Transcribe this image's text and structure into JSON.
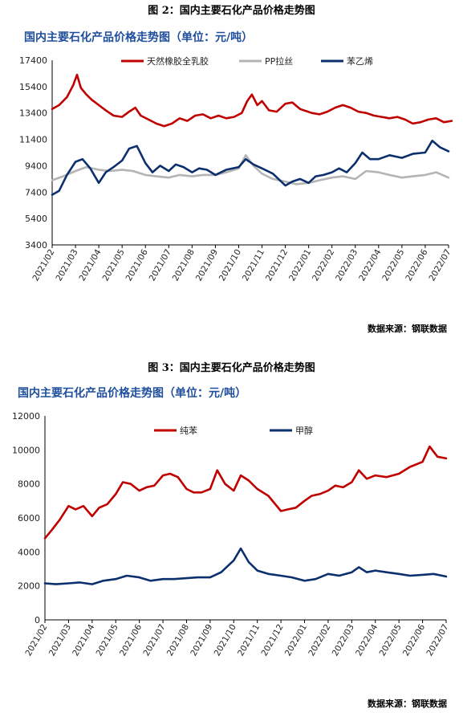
{
  "figure1": {
    "caption": "图 2：国内主要石化产品价格走势图",
    "title": "国内主要石化产品价格走势图（单位：元/吨）",
    "source": "数据来源：钢联数据"
  },
  "figure2": {
    "caption": "图 3：国内主要石化产品价格走势图",
    "title": "国内主要石化产品价格走势图（单位：元/吨）",
    "source": "数据来源：钢联数据"
  },
  "chart_data": [
    {
      "type": "line",
      "title": "国内主要石化产品价格走势图（单位：元/吨）",
      "xlabel": "",
      "ylabel": "",
      "x": [
        "2021/02",
        "2021/03",
        "2021/04",
        "2021/05",
        "2021/06",
        "2021/07",
        "2021/08",
        "2021/09",
        "2021/10",
        "2021/11",
        "2021/12",
        "2022/01",
        "2022/02",
        "2022/03",
        "2022/04",
        "2022/05",
        "2022/06",
        "2022/07"
      ],
      "ylim": [
        3400,
        17400
      ],
      "yticks": [
        3400,
        5400,
        7400,
        9400,
        11400,
        13400,
        15400,
        17400
      ],
      "grid": false,
      "legend": "top",
      "series": [
        {
          "name": "天然橡胶全乳胶",
          "color": "#c00000",
          "points": [
            [
              "2021/02/01",
              13700
            ],
            [
              "2021/02/10",
              14000
            ],
            [
              "2021/02/20",
              14600
            ],
            [
              "2021/02/28",
              15500
            ],
            [
              "2021/03/03",
              16300
            ],
            [
              "2021/03/08",
              15300
            ],
            [
              "2021/03/15",
              14800
            ],
            [
              "2021/03/22",
              14400
            ],
            [
              "2021/04/01",
              14000
            ],
            [
              "2021/04/10",
              13600
            ],
            [
              "2021/04/20",
              13200
            ],
            [
              "2021/05/01",
              13100
            ],
            [
              "2021/05/10",
              13500
            ],
            [
              "2021/05/18",
              13800
            ],
            [
              "2021/05/25",
              13200
            ],
            [
              "2021/06/05",
              12900
            ],
            [
              "2021/06/15",
              12600
            ],
            [
              "2021/06/25",
              12400
            ],
            [
              "2021/07/05",
              12600
            ],
            [
              "2021/07/15",
              13000
            ],
            [
              "2021/07/25",
              12800
            ],
            [
              "2021/08/05",
              13200
            ],
            [
              "2021/08/15",
              13300
            ],
            [
              "2021/08/25",
              13000
            ],
            [
              "2021/09/05",
              13200
            ],
            [
              "2021/09/15",
              13000
            ],
            [
              "2021/09/25",
              13100
            ],
            [
              "2021/10/05",
              13400
            ],
            [
              "2021/10/12",
              14300
            ],
            [
              "2021/10/18",
              14800
            ],
            [
              "2021/10/25",
              14000
            ],
            [
              "2021/11/01",
              14300
            ],
            [
              "2021/11/10",
              13600
            ],
            [
              "2021/11/20",
              13500
            ],
            [
              "2021/12/01",
              14100
            ],
            [
              "2021/12/10",
              14200
            ],
            [
              "2021/12/20",
              13700
            ],
            [
              "2022/01/05",
              13400
            ],
            [
              "2022/01/15",
              13300
            ],
            [
              "2022/01/25",
              13500
            ],
            [
              "2022/02/05",
              13800
            ],
            [
              "2022/02/15",
              14000
            ],
            [
              "2022/02/25",
              13800
            ],
            [
              "2022/03/05",
              13500
            ],
            [
              "2022/03/15",
              13400
            ],
            [
              "2022/03/25",
              13200
            ],
            [
              "2022/04/05",
              13100
            ],
            [
              "2022/04/15",
              13000
            ],
            [
              "2022/04/25",
              13100
            ],
            [
              "2022/05/05",
              12900
            ],
            [
              "2022/05/15",
              12600
            ],
            [
              "2022/05/25",
              12700
            ],
            [
              "2022/06/05",
              12900
            ],
            [
              "2022/06/15",
              13000
            ],
            [
              "2022/06/25",
              12700
            ],
            [
              "2022/07/05",
              12800
            ]
          ]
        },
        {
          "name": "PP拉丝",
          "color": "#b4b4b4",
          "points": [
            [
              "2021/02/01",
              8300
            ],
            [
              "2021/02/15",
              8600
            ],
            [
              "2021/03/01",
              9000
            ],
            [
              "2021/03/15",
              9300
            ],
            [
              "2021/04/01",
              9100
            ],
            [
              "2021/04/15",
              9000
            ],
            [
              "2021/05/01",
              9100
            ],
            [
              "2021/05/15",
              9000
            ],
            [
              "2021/06/01",
              8700
            ],
            [
              "2021/06/15",
              8600
            ],
            [
              "2021/07/01",
              8500
            ],
            [
              "2021/07/15",
              8700
            ],
            [
              "2021/08/01",
              8600
            ],
            [
              "2021/08/15",
              8700
            ],
            [
              "2021/09/01",
              8700
            ],
            [
              "2021/09/15",
              8900
            ],
            [
              "2021/10/01",
              9200
            ],
            [
              "2021/10/10",
              10200
            ],
            [
              "2021/10/20",
              9400
            ],
            [
              "2021/11/01",
              8800
            ],
            [
              "2021/11/15",
              8400
            ],
            [
              "2021/12/01",
              8200
            ],
            [
              "2021/12/15",
              8000
            ],
            [
              "2022/01/01",
              8100
            ],
            [
              "2022/01/15",
              8300
            ],
            [
              "2022/02/01",
              8500
            ],
            [
              "2022/02/15",
              8600
            ],
            [
              "2022/03/01",
              8400
            ],
            [
              "2022/03/15",
              9000
            ],
            [
              "2022/04/01",
              8900
            ],
            [
              "2022/04/15",
              8700
            ],
            [
              "2022/05/01",
              8500
            ],
            [
              "2022/05/15",
              8600
            ],
            [
              "2022/06/01",
              8700
            ],
            [
              "2022/06/15",
              8900
            ],
            [
              "2022/07/01",
              8500
            ]
          ]
        },
        {
          "name": "苯乙烯",
          "color": "#0c2f6e",
          "points": [
            [
              "2021/02/01",
              7200
            ],
            [
              "2021/02/10",
              7500
            ],
            [
              "2021/02/20",
              8700
            ],
            [
              "2021/03/01",
              9700
            ],
            [
              "2021/03/10",
              9900
            ],
            [
              "2021/03/20",
              9200
            ],
            [
              "2021/04/01",
              8100
            ],
            [
              "2021/04/10",
              8900
            ],
            [
              "2021/04/20",
              9300
            ],
            [
              "2021/05/01",
              9800
            ],
            [
              "2021/05/10",
              10700
            ],
            [
              "2021/05/20",
              10900
            ],
            [
              "2021/06/01",
              9600
            ],
            [
              "2021/06/10",
              8900
            ],
            [
              "2021/06/20",
              9400
            ],
            [
              "2021/07/01",
              9000
            ],
            [
              "2021/07/10",
              9500
            ],
            [
              "2021/07/20",
              9300
            ],
            [
              "2021/08/01",
              8900
            ],
            [
              "2021/08/10",
              9200
            ],
            [
              "2021/08/20",
              9100
            ],
            [
              "2021/09/01",
              8700
            ],
            [
              "2021/09/15",
              9100
            ],
            [
              "2021/10/01",
              9300
            ],
            [
              "2021/10/10",
              9900
            ],
            [
              "2021/10/20",
              9500
            ],
            [
              "2021/11/01",
              9200
            ],
            [
              "2021/11/15",
              8800
            ],
            [
              "2021/12/01",
              7900
            ],
            [
              "2021/12/10",
              8200
            ],
            [
              "2021/12/20",
              8400
            ],
            [
              "2022/01/01",
              8100
            ],
            [
              "2022/01/10",
              8600
            ],
            [
              "2022/01/20",
              8700
            ],
            [
              "2022/02/01",
              8900
            ],
            [
              "2022/02/10",
              9200
            ],
            [
              "2022/02/20",
              8900
            ],
            [
              "2022/03/01",
              9600
            ],
            [
              "2022/03/10",
              10400
            ],
            [
              "2022/03/20",
              9900
            ],
            [
              "2022/04/01",
              9900
            ],
            [
              "2022/04/15",
              10200
            ],
            [
              "2022/05/01",
              10000
            ],
            [
              "2022/05/15",
              10300
            ],
            [
              "2022/06/01",
              10400
            ],
            [
              "2022/06/10",
              11300
            ],
            [
              "2022/06/20",
              10800
            ],
            [
              "2022/07/01",
              10500
            ]
          ]
        }
      ]
    },
    {
      "type": "line",
      "title": "国内主要石化产品价格走势图（单位：元/吨）",
      "xlabel": "",
      "ylabel": "",
      "x": [
        "2021/02",
        "2021/03",
        "2021/04",
        "2021/05",
        "2021/06",
        "2021/07",
        "2021/08",
        "2021/09",
        "2021/10",
        "2021/11",
        "2021/12",
        "2022/01",
        "2022/02",
        "2022/03",
        "2022/04",
        "2022/05",
        "2022/06",
        "2022/07"
      ],
      "ylim": [
        0,
        12000
      ],
      "yticks": [
        0,
        2000,
        4000,
        6000,
        8000,
        10000,
        12000
      ],
      "grid": false,
      "legend": "top",
      "series": [
        {
          "name": "纯苯",
          "color": "#c00000",
          "points": [
            [
              "2021/02/01",
              4800
            ],
            [
              "2021/02/10",
              5300
            ],
            [
              "2021/02/20",
              5900
            ],
            [
              "2021/03/01",
              6700
            ],
            [
              "2021/03/10",
              6500
            ],
            [
              "2021/03/20",
              6700
            ],
            [
              "2021/04/01",
              6100
            ],
            [
              "2021/04/10",
              6600
            ],
            [
              "2021/04/20",
              6800
            ],
            [
              "2021/05/01",
              7400
            ],
            [
              "2021/05/10",
              8100
            ],
            [
              "2021/05/20",
              8000
            ],
            [
              "2021/06/01",
              7600
            ],
            [
              "2021/06/10",
              7800
            ],
            [
              "2021/06/20",
              7900
            ],
            [
              "2021/07/01",
              8500
            ],
            [
              "2021/07/10",
              8600
            ],
            [
              "2021/07/20",
              8400
            ],
            [
              "2021/08/01",
              7700
            ],
            [
              "2021/08/10",
              7500
            ],
            [
              "2021/08/20",
              7500
            ],
            [
              "2021/09/01",
              7700
            ],
            [
              "2021/09/10",
              8800
            ],
            [
              "2021/09/20",
              8000
            ],
            [
              "2021/10/01",
              7600
            ],
            [
              "2021/10/10",
              8500
            ],
            [
              "2021/10/20",
              8200
            ],
            [
              "2021/11/01",
              7700
            ],
            [
              "2021/11/15",
              7300
            ],
            [
              "2021/12/01",
              6400
            ],
            [
              "2021/12/10",
              6500
            ],
            [
              "2021/12/20",
              6600
            ],
            [
              "2022/01/01",
              7000
            ],
            [
              "2022/01/10",
              7300
            ],
            [
              "2022/01/20",
              7400
            ],
            [
              "2022/02/01",
              7600
            ],
            [
              "2022/02/10",
              7900
            ],
            [
              "2022/02/20",
              7800
            ],
            [
              "2022/03/01",
              8100
            ],
            [
              "2022/03/10",
              8800
            ],
            [
              "2022/03/20",
              8300
            ],
            [
              "2022/04/01",
              8500
            ],
            [
              "2022/04/15",
              8400
            ],
            [
              "2022/05/01",
              8600
            ],
            [
              "2022/05/15",
              9000
            ],
            [
              "2022/06/01",
              9300
            ],
            [
              "2022/06/10",
              10200
            ],
            [
              "2022/06/20",
              9600
            ],
            [
              "2022/07/01",
              9500
            ]
          ]
        },
        {
          "name": "甲醇",
          "color": "#0c2f6e",
          "points": [
            [
              "2021/02/01",
              2150
            ],
            [
              "2021/02/15",
              2100
            ],
            [
              "2021/03/01",
              2150
            ],
            [
              "2021/03/15",
              2200
            ],
            [
              "2021/04/01",
              2100
            ],
            [
              "2021/04/15",
              2300
            ],
            [
              "2021/05/01",
              2400
            ],
            [
              "2021/05/15",
              2600
            ],
            [
              "2021/06/01",
              2500
            ],
            [
              "2021/06/15",
              2300
            ],
            [
              "2021/07/01",
              2400
            ],
            [
              "2021/07/15",
              2400
            ],
            [
              "2021/08/01",
              2450
            ],
            [
              "2021/08/15",
              2500
            ],
            [
              "2021/09/01",
              2500
            ],
            [
              "2021/09/15",
              2800
            ],
            [
              "2021/10/01",
              3500
            ],
            [
              "2021/10/10",
              4200
            ],
            [
              "2021/10/20",
              3400
            ],
            [
              "2021/11/01",
              2900
            ],
            [
              "2021/11/15",
              2700
            ],
            [
              "2021/12/01",
              2600
            ],
            [
              "2021/12/15",
              2500
            ],
            [
              "2022/01/01",
              2300
            ],
            [
              "2022/01/15",
              2400
            ],
            [
              "2022/02/01",
              2700
            ],
            [
              "2022/02/15",
              2600
            ],
            [
              "2022/03/01",
              2800
            ],
            [
              "2022/03/10",
              3100
            ],
            [
              "2022/03/20",
              2800
            ],
            [
              "2022/04/01",
              2900
            ],
            [
              "2022/04/15",
              2800
            ],
            [
              "2022/05/01",
              2700
            ],
            [
              "2022/05/15",
              2600
            ],
            [
              "2022/06/01",
              2650
            ],
            [
              "2022/06/15",
              2700
            ],
            [
              "2022/07/01",
              2550
            ]
          ]
        }
      ]
    }
  ]
}
